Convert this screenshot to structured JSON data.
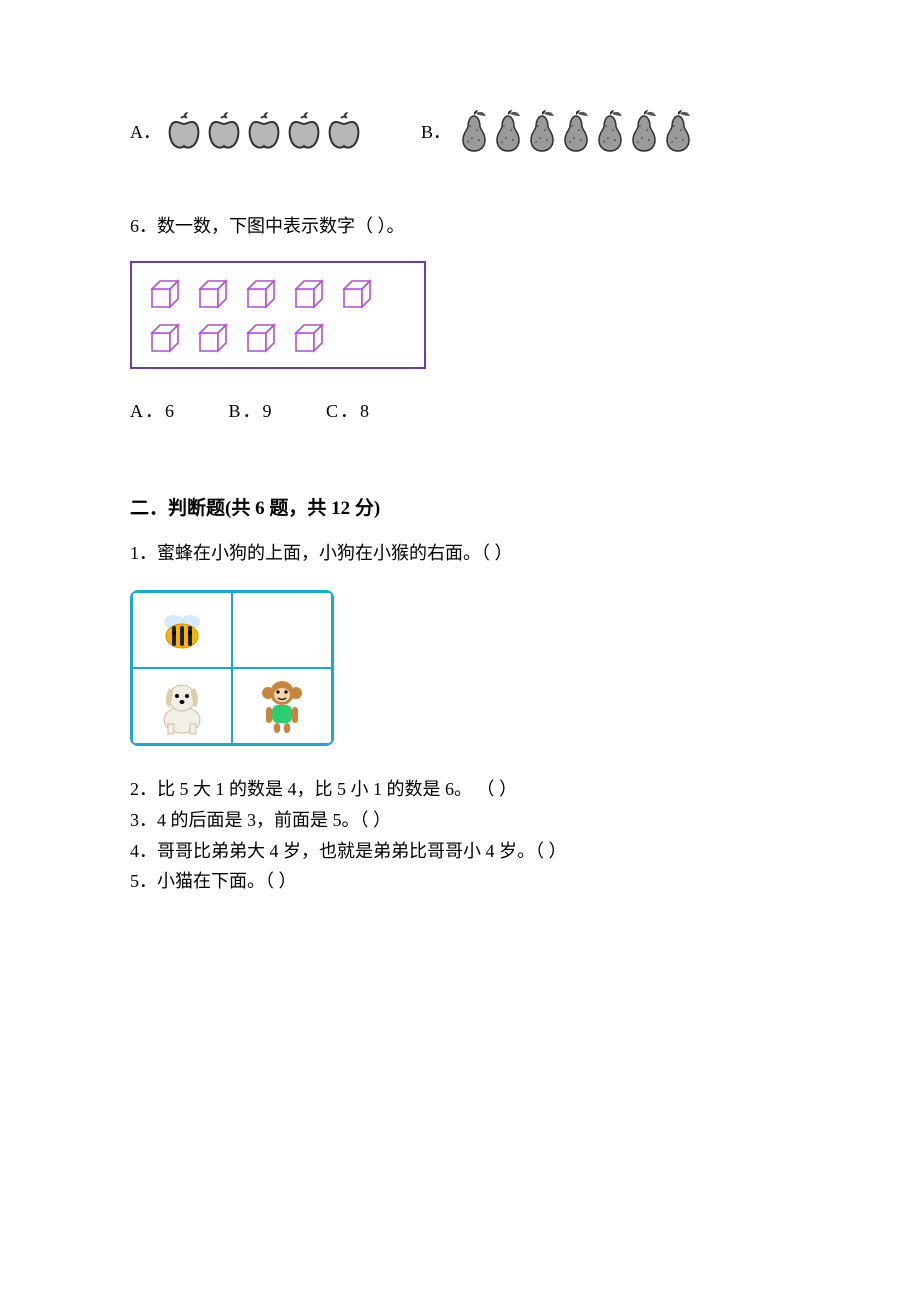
{
  "q5": {
    "optA_label": "A．",
    "optB_label": "B．",
    "apple_count": 5,
    "pear_count": 7,
    "apple_fill": "#b7b7b7",
    "apple_stroke": "#333333",
    "pear_fill": "#9a9a9a",
    "pear_stroke": "#2e2e2e"
  },
  "q6": {
    "text": "6．数一数，下图中表示数字（        ）。",
    "rows": [
      5,
      4
    ],
    "cube_stroke": "#b24fd6",
    "cube_fill": "#ffffff",
    "box_border": "#6b3fa0",
    "options": {
      "A": "A．6",
      "B": "B．9",
      "C": "C．8"
    }
  },
  "section2": {
    "heading": "二．判断题(共 6 题，共 12 分)",
    "q1": "1．蜜蜂在小狗的上面，小狗在小猴的右面。（      ）",
    "grid_border": "#1aa7d0",
    "icons": {
      "bee_body": "#f7b500",
      "bee_stripe": "#222222",
      "bee_wing": "#cfe8ff",
      "dog_body": "#f3efe6",
      "dog_ear": "#d9cfa8",
      "monkey_body": "#c7863f",
      "monkey_shirt": "#2ecc71",
      "monkey_face": "#f6d6a8"
    },
    "q2": "2．比 5 大 1 的数是 4，比 5 小 1 的数是 6。                  （      ）",
    "q3": "3．4 的后面是 3，前面是 5。（        ）",
    "q4": "4．哥哥比弟弟大 4 岁，也就是弟弟比哥哥小 4 岁。（      ）",
    "q5": "5．小猫在下面。（        ）"
  }
}
